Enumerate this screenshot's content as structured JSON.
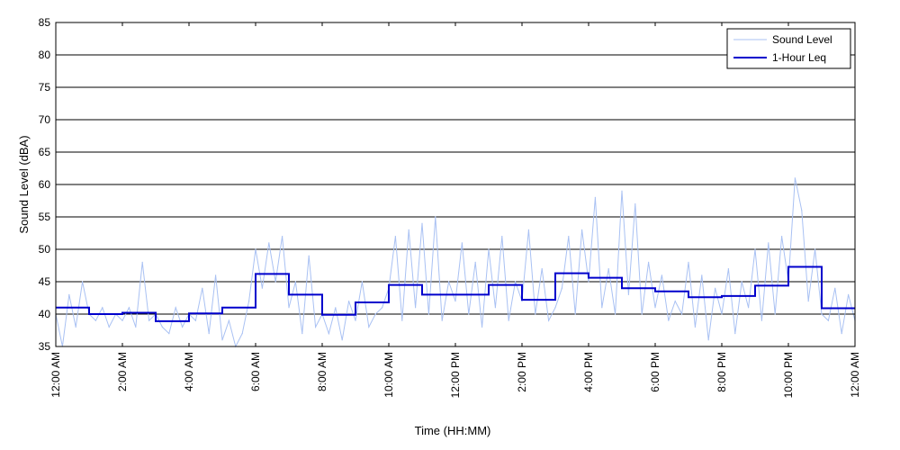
{
  "chart_data": {
    "type": "line",
    "title": "",
    "xlabel": "Time (HH:MM)",
    "ylabel": "Sound Level (dBA)",
    "ylim": [
      35,
      85
    ],
    "xlim_hours": [
      0,
      24
    ],
    "y_ticks": [
      35,
      40,
      45,
      50,
      55,
      60,
      65,
      70,
      75,
      80,
      85
    ],
    "x_ticks": [
      {
        "hour": 0,
        "label": "12:00 AM"
      },
      {
        "hour": 2,
        "label": "2:00 AM"
      },
      {
        "hour": 4,
        "label": "4:00 AM"
      },
      {
        "hour": 6,
        "label": "6:00 AM"
      },
      {
        "hour": 8,
        "label": "8:00 AM"
      },
      {
        "hour": 10,
        "label": "10:00 AM"
      },
      {
        "hour": 12,
        "label": "12:00 PM"
      },
      {
        "hour": 14,
        "label": "2:00 PM"
      },
      {
        "hour": 16,
        "label": "4:00 PM"
      },
      {
        "hour": 18,
        "label": "6:00 PM"
      },
      {
        "hour": 20,
        "label": "8:00 PM"
      },
      {
        "hour": 22,
        "label": "10:00 PM"
      },
      {
        "hour": 24,
        "label": "12:00 AM"
      }
    ],
    "grid": "horizontal",
    "legend_position": "top-right",
    "series": [
      {
        "name": "Sound Level",
        "color": "#a9c1f3",
        "style": "thin-line",
        "x": [
          0.0,
          0.2,
          0.4,
          0.6,
          0.8,
          1.0,
          1.2,
          1.4,
          1.6,
          1.8,
          2.0,
          2.2,
          2.4,
          2.6,
          2.8,
          3.0,
          3.2,
          3.4,
          3.6,
          3.8,
          4.0,
          4.2,
          4.4,
          4.6,
          4.8,
          5.0,
          5.2,
          5.4,
          5.6,
          5.8,
          6.0,
          6.2,
          6.4,
          6.6,
          6.8,
          7.0,
          7.2,
          7.4,
          7.6,
          7.8,
          8.0,
          8.2,
          8.4,
          8.6,
          8.8,
          9.0,
          9.2,
          9.4,
          9.6,
          9.8,
          10.0,
          10.2,
          10.4,
          10.6,
          10.8,
          11.0,
          11.2,
          11.4,
          11.6,
          11.8,
          12.0,
          12.2,
          12.4,
          12.6,
          12.8,
          13.0,
          13.2,
          13.4,
          13.6,
          13.8,
          14.0,
          14.2,
          14.4,
          14.6,
          14.8,
          15.0,
          15.2,
          15.4,
          15.6,
          15.8,
          16.0,
          16.2,
          16.4,
          16.6,
          16.8,
          17.0,
          17.2,
          17.4,
          17.6,
          17.8,
          18.0,
          18.2,
          18.4,
          18.6,
          18.8,
          19.0,
          19.2,
          19.4,
          19.6,
          19.8,
          20.0,
          20.2,
          20.4,
          20.6,
          20.8,
          21.0,
          21.2,
          21.4,
          21.6,
          21.8,
          22.0,
          22.2,
          22.4,
          22.6,
          22.8,
          23.0,
          23.2,
          23.4,
          23.6,
          23.8,
          24.0
        ],
        "values": [
          40,
          35,
          43,
          38,
          45,
          40,
          39,
          41,
          38,
          40,
          39,
          41,
          38,
          48,
          39,
          40,
          38,
          37,
          41,
          38,
          40,
          39,
          44,
          37,
          46,
          36,
          39,
          35,
          37,
          42,
          50,
          44,
          51,
          45,
          52,
          41,
          45,
          37,
          49,
          38,
          40,
          37,
          41,
          36,
          42,
          39,
          45,
          38,
          40,
          41,
          44,
          52,
          39,
          53,
          41,
          54,
          40,
          55,
          39,
          45,
          42,
          51,
          40,
          48,
          38,
          50,
          41,
          52,
          39,
          45,
          42,
          53,
          40,
          47,
          39,
          41,
          44,
          52,
          40,
          53,
          45,
          58,
          41,
          47,
          40,
          59,
          43,
          57,
          40,
          48,
          41,
          46,
          39,
          42,
          40,
          48,
          38,
          46,
          36,
          44,
          40,
          47,
          37,
          45,
          41,
          50,
          39,
          51,
          40,
          52,
          45,
          61,
          56,
          42,
          50,
          40,
          39,
          44,
          37,
          43,
          39
        ]
      },
      {
        "name": "1-Hour Leq",
        "color": "#0000cc",
        "style": "step",
        "x": [
          0,
          1,
          2,
          3,
          4,
          5,
          6,
          7,
          8,
          9,
          10,
          11,
          12,
          13,
          14,
          15,
          16,
          17,
          18,
          19,
          20,
          21,
          22,
          23
        ],
        "values": [
          41.0,
          40.0,
          40.2,
          38.9,
          40.1,
          41.0,
          46.2,
          43.0,
          39.9,
          41.8,
          44.5,
          43.0,
          43.0,
          44.5,
          42.2,
          46.3,
          45.6,
          44.0,
          43.5,
          42.6,
          42.8,
          44.4,
          47.3,
          40.9
        ]
      }
    ]
  }
}
